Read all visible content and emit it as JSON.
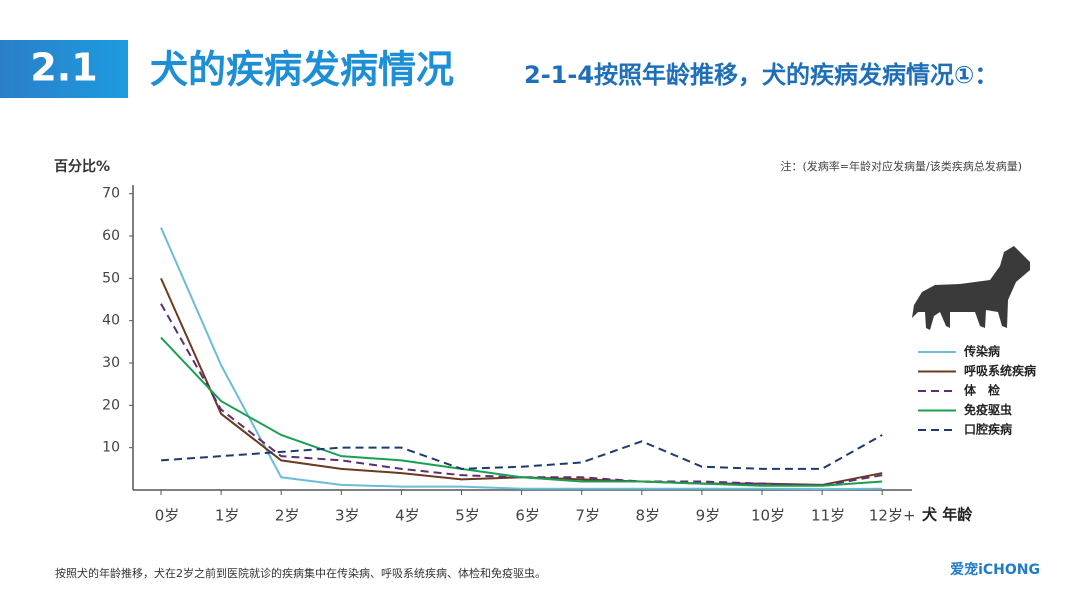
{
  "header": {
    "section": "2.1",
    "title": "犬的疾病发病情况",
    "subtitle": "2-1-4按照年龄推移，犬的疾病发病情况①："
  },
  "chart_data": {
    "type": "line",
    "y_label": "百分比%",
    "x_label": "犬 年龄",
    "annotation": "注：(发病率=年龄对应发病量/该类疾病总发病量)",
    "categories": [
      "0岁",
      "1岁",
      "2岁",
      "3岁",
      "4岁",
      "5岁",
      "6岁",
      "7岁",
      "8岁",
      "9岁",
      "10岁",
      "11岁",
      "12岁+"
    ],
    "ylim": [
      0,
      70
    ],
    "yticks": [
      10,
      20,
      30,
      40,
      50,
      60,
      70
    ],
    "grid": false,
    "legend": "right",
    "series": [
      {
        "name": "传染病",
        "color": "#6cbcd9",
        "dashed": false,
        "values": [
          62,
          29.5,
          3,
          1.2,
          0.8,
          0.8,
          0.3,
          0.3,
          0.3,
          0.3,
          0.3,
          0.2,
          0.3
        ]
      },
      {
        "name": "呼吸系统疾病",
        "color": "#6b3a1f",
        "dashed": false,
        "values": [
          50,
          18,
          7,
          5,
          4,
          2.5,
          3,
          2.5,
          2,
          1.5,
          1.5,
          1.2,
          4
        ]
      },
      {
        "name": "体　检",
        "color": "#5b2d7a",
        "dashed": true,
        "values": [
          44,
          19,
          8,
          7,
          5,
          3.5,
          3,
          3,
          2,
          2,
          1.5,
          1,
          3.5
        ]
      },
      {
        "name": "免疫驱虫",
        "color": "#1aa050",
        "dashed": false,
        "values": [
          36,
          21,
          13,
          8,
          7,
          5,
          3,
          2,
          2,
          1.5,
          1,
          1,
          2
        ]
      },
      {
        "name": "口腔疾病",
        "color": "#1f3b6e",
        "dashed": true,
        "values": [
          7,
          8,
          9,
          10,
          10,
          5,
          5.5,
          6.5,
          11.5,
          5.5,
          5,
          5,
          13
        ]
      }
    ]
  },
  "footer": {
    "note": "按照犬的年龄推移，犬在2岁之前到医院就诊的疾病集中在传染病、呼吸系统疾病、体检和免疫驱虫。",
    "logo": "爱宠iCHONG"
  }
}
